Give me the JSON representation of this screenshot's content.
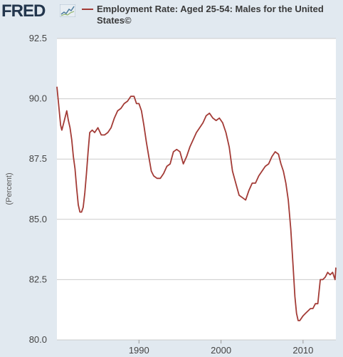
{
  "brand": {
    "logo_text": "FRED",
    "mini_icon": "trend-line-icon"
  },
  "colors": {
    "series": "#a33b36",
    "plot_bg": "#ffffff",
    "page_bg": "#e1e9f0",
    "grid": "#cccccc"
  },
  "chart_data": {
    "type": "line",
    "title": "Employment Rate: Aged 25-54: Males for the United States©",
    "ylabel": "(Percent)",
    "xlabel": "",
    "ylim": [
      80.0,
      92.5
    ],
    "xlim": [
      1980.0,
      2014.0
    ],
    "yticks": [
      "80.0",
      "82.5",
      "85.0",
      "87.5",
      "90.0",
      "92.5"
    ],
    "xticks": [
      "1990",
      "2000",
      "2010"
    ],
    "grid": true,
    "legend": "top-left",
    "series": [
      {
        "name": "Employment Rate: Aged 25-54: Males for the United States©",
        "x": [
          1980.0,
          1980.2,
          1980.45,
          1980.6,
          1980.9,
          1981.2,
          1981.4,
          1981.6,
          1981.8,
          1982.0,
          1982.2,
          1982.4,
          1982.6,
          1982.8,
          1983.0,
          1983.2,
          1983.4,
          1983.6,
          1983.8,
          1984.0,
          1984.3,
          1984.6,
          1985.0,
          1985.4,
          1985.8,
          1986.2,
          1986.6,
          1987.0,
          1987.4,
          1987.8,
          1988.2,
          1988.6,
          1989.0,
          1989.4,
          1989.7,
          1990.0,
          1990.3,
          1990.6,
          1990.9,
          1991.2,
          1991.5,
          1991.8,
          1992.2,
          1992.6,
          1993.0,
          1993.4,
          1993.8,
          1994.2,
          1994.6,
          1995.0,
          1995.4,
          1995.8,
          1996.2,
          1996.6,
          1997.0,
          1997.4,
          1997.8,
          1998.2,
          1998.6,
          1999.0,
          1999.4,
          1999.8,
          2000.2,
          2000.6,
          2001.0,
          2001.4,
          2001.8,
          2002.2,
          2002.6,
          2003.0,
          2003.4,
          2003.8,
          2004.2,
          2004.6,
          2005.0,
          2005.4,
          2005.8,
          2006.2,
          2006.6,
          2007.0,
          2007.3,
          2007.6,
          2007.9,
          2008.2,
          2008.5,
          2008.8,
          2009.0,
          2009.2,
          2009.4,
          2009.6,
          2009.8,
          2010.0,
          2010.3,
          2010.6,
          2010.9,
          2011.2,
          2011.5,
          2011.8,
          2012.1,
          2012.4,
          2012.7,
          2013.0,
          2013.3,
          2013.6,
          2013.9,
          2014.0
        ],
        "values": [
          90.5,
          89.8,
          88.9,
          88.7,
          89.1,
          89.5,
          89.1,
          88.8,
          88.3,
          87.6,
          87.1,
          86.3,
          85.6,
          85.3,
          85.3,
          85.5,
          86.1,
          86.9,
          87.8,
          88.6,
          88.7,
          88.6,
          88.8,
          88.5,
          88.5,
          88.6,
          88.8,
          89.2,
          89.5,
          89.6,
          89.8,
          89.9,
          90.1,
          90.1,
          89.8,
          89.8,
          89.5,
          88.9,
          88.2,
          87.6,
          87.0,
          86.8,
          86.7,
          86.7,
          86.9,
          87.2,
          87.3,
          87.8,
          87.9,
          87.8,
          87.3,
          87.6,
          88.0,
          88.3,
          88.6,
          88.8,
          89.0,
          89.3,
          89.4,
          89.2,
          89.1,
          89.2,
          89.0,
          88.6,
          88.0,
          87.0,
          86.5,
          86.0,
          85.9,
          85.8,
          86.2,
          86.5,
          86.5,
          86.8,
          87.0,
          87.2,
          87.3,
          87.6,
          87.8,
          87.7,
          87.3,
          87.0,
          86.5,
          85.8,
          84.6,
          83.0,
          81.8,
          81.1,
          80.8,
          80.8,
          80.9,
          81.0,
          81.1,
          81.2,
          81.3,
          81.3,
          81.5,
          81.5,
          82.5,
          82.5,
          82.6,
          82.8,
          82.7,
          82.8,
          82.5,
          83.0
        ]
      }
    ]
  }
}
